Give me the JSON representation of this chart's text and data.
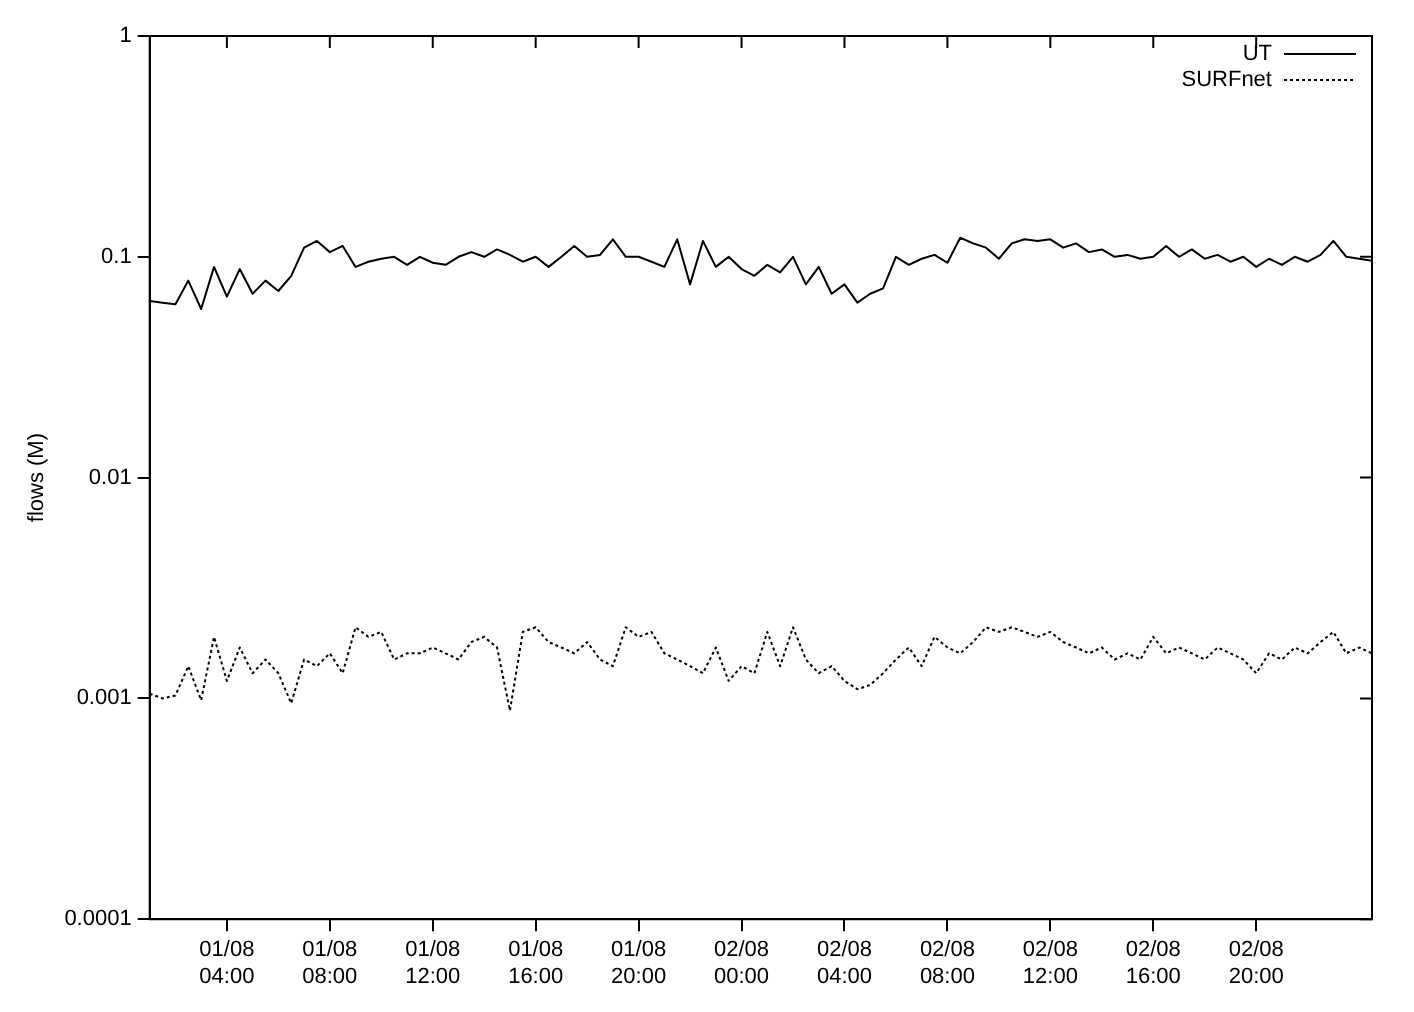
{
  "chart_data": {
    "type": "line",
    "ylabel": "flows (M)",
    "log": "y",
    "grid": false,
    "legend": "top right",
    "marker": "none",
    "x": [
      "--08-01T01:00",
      "--08-01T01:30",
      "--08-01T02:00",
      "--08-01T02:30",
      "--08-01T03:00",
      "--08-01T03:30",
      "--08-01T04:00",
      "--08-01T04:30",
      "--08-01T05:00",
      "--08-01T05:30",
      "--08-01T06:00",
      "--08-01T06:30",
      "--08-01T07:00",
      "--08-01T07:30",
      "--08-01T08:00",
      "--08-01T08:30",
      "--08-01T09:00",
      "--08-01T09:30",
      "--08-01T10:00",
      "--08-01T10:30",
      "--08-01T11:00",
      "--08-01T11:30",
      "--08-01T12:00",
      "--08-01T12:30",
      "--08-01T13:00",
      "--08-01T13:30",
      "--08-01T14:00",
      "--08-01T14:30",
      "--08-01T15:00",
      "--08-01T15:30",
      "--08-01T16:00",
      "--08-01T16:30",
      "--08-01T17:00",
      "--08-01T17:30",
      "--08-01T18:00",
      "--08-01T18:30",
      "--08-01T19:00",
      "--08-01T19:30",
      "--08-01T20:00",
      "--08-01T20:30",
      "--08-01T21:00",
      "--08-01T21:30",
      "--08-01T22:00",
      "--08-01T22:30",
      "--08-01T23:00",
      "--08-01T23:30",
      "--08-02T00:00",
      "--08-02T00:30",
      "--08-02T01:00",
      "--08-02T01:30",
      "--08-02T02:00",
      "--08-02T02:30",
      "--08-02T03:00",
      "--08-02T03:30",
      "--08-02T04:00",
      "--08-02T04:30",
      "--08-02T05:00",
      "--08-02T05:30",
      "--08-02T06:00",
      "--08-02T06:30",
      "--08-02T07:00",
      "--08-02T07:30",
      "--08-02T08:00",
      "--08-02T08:30",
      "--08-02T09:00",
      "--08-02T09:30",
      "--08-02T10:00",
      "--08-02T10:30",
      "--08-02T11:00",
      "--08-02T11:30",
      "--08-02T12:00",
      "--08-02T12:30",
      "--08-02T13:00",
      "--08-02T13:30",
      "--08-02T14:00",
      "--08-02T14:30",
      "--08-02T15:00",
      "--08-02T15:30",
      "--08-02T16:00",
      "--08-02T16:30",
      "--08-02T17:00",
      "--08-02T17:30",
      "--08-02T18:00",
      "--08-02T18:30",
      "--08-02T19:00",
      "--08-02T19:30",
      "--08-02T20:00",
      "--08-02T20:30",
      "--08-02T21:00",
      "--08-02T21:30",
      "--08-02T22:00",
      "--08-02T22:30",
      "--08-02T23:00",
      "--08-02T23:30",
      "--08-03T00:00",
      "--08-03T00:30"
    ],
    "xlim": [
      "--08-01T01:00",
      "--08-03T00:30"
    ],
    "xticks": [
      {
        "value": "--08-01T04:00",
        "label": "01/08 04:00"
      },
      {
        "value": "--08-01T08:00",
        "label": "01/08 08:00"
      },
      {
        "value": "--08-01T12:00",
        "label": "01/08 12:00"
      },
      {
        "value": "--08-01T16:00",
        "label": "01/08 16:00"
      },
      {
        "value": "--08-01T20:00",
        "label": "01/08 20:00"
      },
      {
        "value": "--08-02T00:00",
        "label": "02/08 00:00"
      },
      {
        "value": "--08-02T04:00",
        "label": "02/08 04:00"
      },
      {
        "value": "--08-02T08:00",
        "label": "02/08 08:00"
      },
      {
        "value": "--08-02T12:00",
        "label": "02/08 12:00"
      },
      {
        "value": "--08-02T16:00",
        "label": "02/08 16:00"
      },
      {
        "value": "--08-02T20:00",
        "label": "02/08 20:00"
      }
    ],
    "ylim": [
      0.0001,
      1
    ],
    "yticks": [
      0.0001,
      0.001,
      0.01,
      0.1,
      1
    ],
    "series": [
      {
        "name": "UT",
        "color": "#000000",
        "line_style": "solid",
        "values": [
          0.063,
          0.062,
          0.061,
          0.078,
          0.058,
          0.09,
          0.066,
          0.088,
          0.068,
          0.078,
          0.07,
          0.082,
          0.11,
          0.118,
          0.105,
          0.112,
          0.09,
          0.095,
          0.098,
          0.1,
          0.092,
          0.1,
          0.094,
          0.092,
          0.1,
          0.105,
          0.1,
          0.108,
          0.102,
          0.095,
          0.1,
          0.09,
          0.1,
          0.112,
          0.1,
          0.102,
          0.12,
          0.1,
          0.1,
          0.095,
          0.09,
          0.12,
          0.075,
          0.118,
          0.09,
          0.1,
          0.088,
          0.082,
          0.092,
          0.085,
          0.1,
          0.075,
          0.09,
          0.068,
          0.075,
          0.062,
          0.068,
          0.072,
          0.1,
          0.092,
          0.098,
          0.102,
          0.094,
          0.122,
          0.115,
          0.11,
          0.098,
          0.115,
          0.12,
          0.118,
          0.12,
          0.11,
          0.115,
          0.105,
          0.108,
          0.1,
          0.102,
          0.098,
          0.1,
          0.112,
          0.1,
          0.108,
          0.098,
          0.102,
          0.095,
          0.1,
          0.09,
          0.098,
          0.092,
          0.1,
          0.095,
          0.102,
          0.118,
          0.1,
          0.098,
          0.096
        ]
      },
      {
        "name": "SURFnet",
        "color": "#000000",
        "line_style": "dotted",
        "values": [
          0.00105,
          0.001,
          0.00103,
          0.0014,
          0.00098,
          0.0019,
          0.0012,
          0.0017,
          0.0013,
          0.0015,
          0.0013,
          0.00095,
          0.0015,
          0.0014,
          0.0016,
          0.0013,
          0.0021,
          0.0019,
          0.002,
          0.0015,
          0.0016,
          0.0016,
          0.0017,
          0.0016,
          0.0015,
          0.0018,
          0.0019,
          0.0017,
          0.00088,
          0.002,
          0.0021,
          0.0018,
          0.0017,
          0.0016,
          0.0018,
          0.0015,
          0.0014,
          0.0021,
          0.0019,
          0.002,
          0.0016,
          0.0015,
          0.0014,
          0.0013,
          0.0017,
          0.0012,
          0.0014,
          0.0013,
          0.002,
          0.0014,
          0.0021,
          0.0015,
          0.0013,
          0.0014,
          0.0012,
          0.0011,
          0.00115,
          0.0013,
          0.0015,
          0.0017,
          0.0014,
          0.0019,
          0.0017,
          0.0016,
          0.0018,
          0.0021,
          0.002,
          0.0021,
          0.002,
          0.0019,
          0.002,
          0.0018,
          0.0017,
          0.0016,
          0.0017,
          0.0015,
          0.0016,
          0.0015,
          0.0019,
          0.0016,
          0.0017,
          0.0016,
          0.0015,
          0.0017,
          0.0016,
          0.0015,
          0.0013,
          0.0016,
          0.0015,
          0.0017,
          0.0016,
          0.0018,
          0.002,
          0.0016,
          0.0017,
          0.0016
        ]
      }
    ]
  }
}
